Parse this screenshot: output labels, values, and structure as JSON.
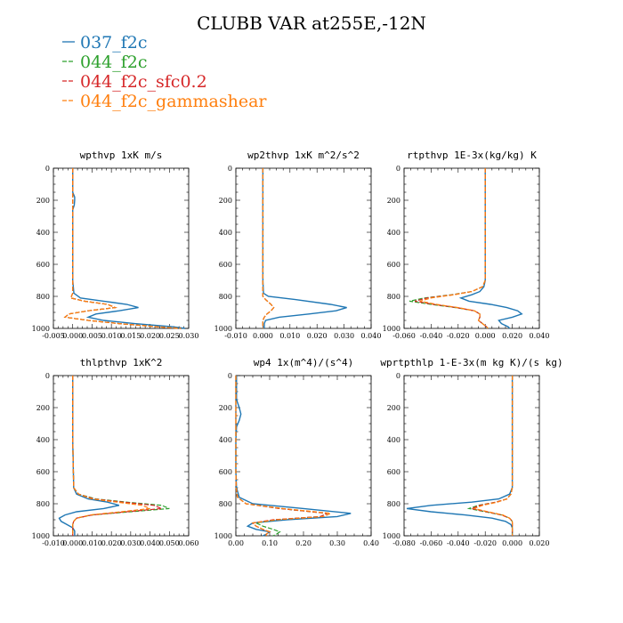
{
  "figure": {
    "title": "CLUBB VAR at255E,-12N",
    "legend": [
      {
        "name": "037_f2c",
        "color": "#1f77b4",
        "dash": "solid"
      },
      {
        "name": "044_f2c",
        "color": "#2ca02c",
        "dash": "dashed"
      },
      {
        "name": "044_f2c_sfc0.2",
        "color": "#d62728",
        "dash": "dashed"
      },
      {
        "name": "044_f2c_gammashear",
        "color": "#ff7f0e",
        "dash": "dashed"
      }
    ]
  },
  "chart_data": [
    {
      "type": "line",
      "title": "wpthvp  1xK m/s",
      "xlim": [
        -0.005,
        0.03
      ],
      "xticks": [
        "-0.005",
        "0.000",
        "0.005",
        "0.010",
        "0.015",
        "0.020",
        "0.025",
        "0.030"
      ],
      "ylim": [
        1000,
        0
      ],
      "yticks": [
        "0",
        "200",
        "400",
        "600",
        "800",
        "1000"
      ],
      "y": [
        0,
        150,
        180,
        200,
        230,
        260,
        400,
        600,
        700,
        780,
        810,
        830,
        850,
        870,
        890,
        910,
        930,
        950,
        970,
        990,
        1000
      ],
      "series": [
        {
          "name": "037_f2c",
          "values": [
            0.0,
            0.0,
            0.0005,
            0.0005,
            0.0004,
            0.0,
            0.0,
            0.0,
            0.0,
            0.0003,
            0.002,
            0.008,
            0.014,
            0.017,
            0.012,
            0.006,
            0.004,
            0.008,
            0.016,
            0.026,
            0.029
          ]
        },
        {
          "name": "044_f2c",
          "values": [
            0.0,
            0.0,
            0.0,
            0.0,
            0.0,
            0.0,
            0.0,
            0.0,
            0.0,
            0.0,
            -0.0005,
            0.003,
            0.009,
            0.011,
            0.004,
            -0.001,
            -0.002,
            0.004,
            0.012,
            0.022,
            0.028
          ]
        },
        {
          "name": "044_f2c_sfc0.2",
          "values": [
            0.0,
            0.0,
            0.0,
            0.0,
            0.0,
            0.0,
            0.0,
            0.0,
            0.0,
            0.0,
            -0.0005,
            0.003,
            0.009,
            0.011,
            0.004,
            -0.001,
            -0.002,
            0.004,
            0.012,
            0.022,
            0.028
          ]
        },
        {
          "name": "044_f2c_gammashear",
          "values": [
            0.0,
            0.0,
            0.0,
            0.0,
            0.0,
            0.0,
            0.0,
            0.0,
            0.0,
            0.0,
            -0.0005,
            0.003,
            0.009,
            0.011,
            0.004,
            -0.001,
            -0.002,
            0.004,
            0.012,
            0.022,
            0.028
          ]
        }
      ]
    },
    {
      "type": "line",
      "title": "wp2thvp  1xK m^2/s^2",
      "xlim": [
        -0.01,
        0.04
      ],
      "xticks": [
        "-0.010",
        "0.000",
        "0.010",
        "0.020",
        "0.030",
        "0.040"
      ],
      "ylim": [
        1000,
        0
      ],
      "yticks": [
        "0",
        "200",
        "400",
        "600",
        "800",
        "1000"
      ],
      "y": [
        0,
        400,
        700,
        780,
        800,
        820,
        850,
        870,
        890,
        910,
        930,
        950,
        970,
        1000
      ],
      "series": [
        {
          "name": "037_f2c",
          "values": [
            0.0,
            0.0,
            0.0,
            0.0002,
            0.002,
            0.012,
            0.025,
            0.031,
            0.027,
            0.017,
            0.006,
            0.001,
            0.0005,
            0.0005
          ]
        },
        {
          "name": "044_f2c",
          "values": [
            0.0,
            0.0,
            0.0,
            0.0,
            0.0,
            0.001,
            0.003,
            0.004,
            0.003,
            0.0015,
            0.0005,
            0.0,
            0.0,
            0.0
          ]
        },
        {
          "name": "044_f2c_sfc0.2",
          "values": [
            0.0,
            0.0,
            0.0,
            0.0,
            0.0,
            0.001,
            0.003,
            0.004,
            0.003,
            0.0015,
            0.0005,
            0.0,
            0.0,
            0.0
          ]
        },
        {
          "name": "044_f2c_gammashear",
          "values": [
            0.0,
            0.0,
            0.0,
            0.0,
            0.0,
            0.001,
            0.003,
            0.004,
            0.003,
            0.0015,
            0.0005,
            0.0,
            0.0,
            0.0
          ]
        }
      ]
    },
    {
      "type": "line",
      "title": "rtpthvp  1E-3x(kg/kg) K",
      "xlim": [
        -0.06,
        0.04
      ],
      "xticks": [
        "-0.060",
        "-0.040",
        "-0.020",
        "0.000",
        "0.020",
        "0.040"
      ],
      "ylim": [
        1000,
        0
      ],
      "yticks": [
        "0",
        "200",
        "400",
        "600",
        "800",
        "1000"
      ],
      "y": [
        0,
        400,
        700,
        740,
        770,
        790,
        810,
        830,
        850,
        870,
        890,
        910,
        930,
        950,
        970,
        990,
        1000
      ],
      "series": [
        {
          "name": "037_f2c",
          "values": [
            0.0,
            0.0,
            0.0,
            -0.001,
            -0.004,
            -0.01,
            -0.018,
            -0.012,
            0.004,
            0.016,
            0.024,
            0.027,
            0.02,
            0.01,
            0.012,
            0.017,
            0.018
          ]
        },
        {
          "name": "044_f2c",
          "values": [
            0.0,
            0.0,
            0.0,
            -0.002,
            -0.01,
            -0.025,
            -0.045,
            -0.056,
            -0.04,
            -0.022,
            -0.008,
            -0.004,
            -0.004,
            -0.005,
            -0.002,
            0.001,
            0.002
          ]
        },
        {
          "name": "044_f2c_sfc0.2",
          "values": [
            0.0,
            0.0,
            0.0,
            -0.002,
            -0.01,
            -0.024,
            -0.043,
            -0.052,
            -0.038,
            -0.021,
            -0.008,
            -0.004,
            -0.004,
            -0.005,
            -0.002,
            0.001,
            0.002
          ]
        },
        {
          "name": "044_f2c_gammashear",
          "values": [
            0.0,
            0.0,
            0.0,
            -0.002,
            -0.01,
            -0.023,
            -0.04,
            -0.048,
            -0.036,
            -0.02,
            -0.008,
            -0.004,
            -0.004,
            -0.005,
            -0.002,
            0.001,
            0.002
          ]
        }
      ]
    },
    {
      "type": "line",
      "title": "thlpthvp  1xK^2",
      "xlim": [
        -0.01,
        0.06
      ],
      "xticks": [
        "-0.010",
        "0.000",
        "0.010",
        "0.020",
        "0.030",
        "0.040",
        "0.050",
        "0.060"
      ],
      "ylim": [
        1000,
        0
      ],
      "yticks": [
        "0",
        "200",
        "400",
        "600",
        "800",
        "1000"
      ],
      "y": [
        0,
        400,
        700,
        740,
        770,
        790,
        810,
        830,
        850,
        870,
        890,
        910,
        930,
        950,
        970,
        1000
      ],
      "series": [
        {
          "name": "037_f2c",
          "values": [
            0.0,
            0.0,
            0.0005,
            0.002,
            0.008,
            0.018,
            0.024,
            0.016,
            0.002,
            -0.004,
            -0.007,
            -0.006,
            -0.003,
            0.0,
            0.001,
            0.001
          ]
        },
        {
          "name": "044_f2c",
          "values": [
            0.0,
            0.0,
            0.0005,
            0.003,
            0.012,
            0.028,
            0.046,
            0.05,
            0.03,
            0.01,
            0.002,
            0.0005,
            0.0,
            0.0,
            0.0,
            0.0
          ]
        },
        {
          "name": "044_f2c_sfc0.2",
          "values": [
            0.0,
            0.0,
            0.0005,
            0.003,
            0.011,
            0.026,
            0.042,
            0.046,
            0.028,
            0.01,
            0.002,
            0.0005,
            0.0,
            0.0,
            0.0,
            0.0
          ]
        },
        {
          "name": "044_f2c_gammashear",
          "values": [
            0.0,
            0.0,
            0.0005,
            0.003,
            0.01,
            0.023,
            0.036,
            0.04,
            0.025,
            0.009,
            0.002,
            0.0005,
            0.0,
            0.0,
            0.0,
            0.0
          ]
        }
      ]
    },
    {
      "type": "line",
      "title": "wp4  1x(m^4)/(s^4)",
      "xlim": [
        0.0,
        0.4
      ],
      "xticks": [
        "0.00",
        "0.10",
        "0.20",
        "0.30",
        "0.40"
      ],
      "ylim": [
        1000,
        0
      ],
      "yticks": [
        "0",
        "200",
        "400",
        "600",
        "800",
        "1000"
      ],
      "y": [
        0,
        150,
        200,
        240,
        280,
        320,
        400,
        600,
        700,
        760,
        800,
        830,
        860,
        880,
        900,
        920,
        940,
        960,
        975,
        990,
        1000
      ],
      "series": [
        {
          "name": "037_f2c",
          "values": [
            0.002,
            0.002,
            0.01,
            0.015,
            0.01,
            0.002,
            0.0,
            0.0,
            0.002,
            0.01,
            0.05,
            0.2,
            0.34,
            0.3,
            0.15,
            0.05,
            0.035,
            0.06,
            0.1,
            0.09,
            0.08
          ]
        },
        {
          "name": "044_f2c",
          "values": [
            0.0,
            0.0,
            0.0,
            0.0,
            0.0,
            0.0,
            0.0,
            0.0,
            0.001,
            0.005,
            0.03,
            0.13,
            0.27,
            0.25,
            0.12,
            0.06,
            0.08,
            0.11,
            0.13,
            0.12,
            0.11
          ]
        },
        {
          "name": "044_f2c_sfc0.2",
          "values": [
            0.0,
            0.0,
            0.0,
            0.0,
            0.0,
            0.0,
            0.0,
            0.0,
            0.001,
            0.005,
            0.03,
            0.13,
            0.27,
            0.25,
            0.11,
            0.05,
            0.06,
            0.08,
            0.1,
            0.09,
            0.09
          ]
        },
        {
          "name": "044_f2c_gammashear",
          "values": [
            0.0,
            0.0,
            0.0,
            0.0,
            0.0,
            0.0,
            0.0,
            0.0,
            0.001,
            0.005,
            0.03,
            0.14,
            0.28,
            0.26,
            0.12,
            0.05,
            0.06,
            0.08,
            0.1,
            0.09,
            0.09
          ]
        }
      ]
    },
    {
      "type": "line",
      "title": "wprtpthlp  1-E-3x(m kg K)/(s kg)",
      "xlim": [
        -0.08,
        0.02
      ],
      "xticks": [
        "-0.080",
        "-0.060",
        "-0.040",
        "-0.020",
        "0.000",
        "0.020"
      ],
      "ylim": [
        1000,
        0
      ],
      "yticks": [
        "0",
        "200",
        "400",
        "600",
        "800",
        "1000"
      ],
      "y": [
        0,
        400,
        700,
        740,
        770,
        790,
        810,
        830,
        850,
        870,
        890,
        910,
        930,
        950,
        1000
      ],
      "series": [
        {
          "name": "037_f2c",
          "values": [
            0.0,
            0.0,
            0.0,
            -0.002,
            -0.01,
            -0.03,
            -0.06,
            -0.078,
            -0.06,
            -0.035,
            -0.015,
            -0.005,
            -0.001,
            0.0,
            0.0
          ]
        },
        {
          "name": "044_f2c",
          "values": [
            0.0,
            0.0,
            0.0,
            -0.001,
            -0.004,
            -0.012,
            -0.025,
            -0.032,
            -0.02,
            -0.008,
            -0.002,
            0.0,
            0.0,
            0.0,
            0.0
          ]
        },
        {
          "name": "044_f2c_sfc0.2",
          "values": [
            0.0,
            0.0,
            0.0,
            -0.001,
            -0.004,
            -0.012,
            -0.024,
            -0.03,
            -0.019,
            -0.008,
            -0.002,
            0.0,
            0.0,
            0.0,
            0.0
          ]
        },
        {
          "name": "044_f2c_gammashear",
          "values": [
            0.0,
            0.0,
            0.0,
            -0.001,
            -0.004,
            -0.011,
            -0.022,
            -0.028,
            -0.018,
            -0.007,
            -0.002,
            0.0,
            0.0,
            0.0,
            0.0
          ]
        }
      ]
    }
  ]
}
